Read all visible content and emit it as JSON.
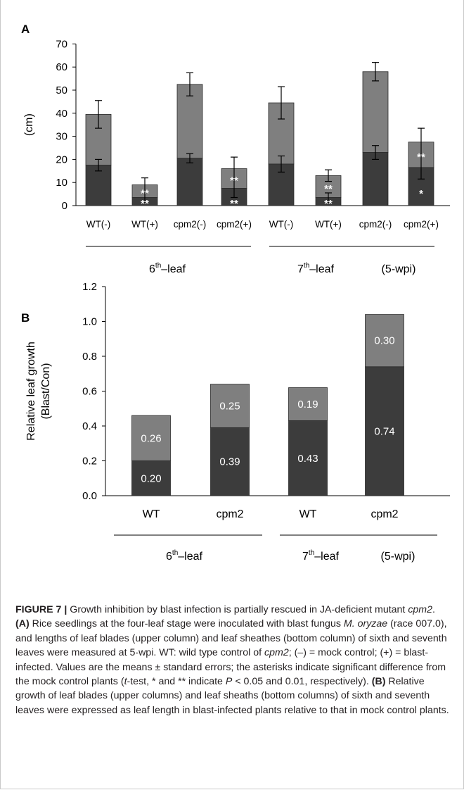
{
  "colors": {
    "lower": "#3c3c3c",
    "upper": "#7f7f7f",
    "axis": "#000000",
    "caption_text": "#231f20"
  },
  "panel_a": {
    "label": "A",
    "group_labels": [
      {
        "base": "6",
        "sup": "th",
        "suffix": "–leaf"
      },
      {
        "base": "7",
        "sup": "th",
        "suffix": "–leaf"
      }
    ],
    "note": "(5-wpi)"
  },
  "panel_b": {
    "label": "B",
    "group_labels": [
      {
        "base": "6",
        "sup": "th",
        "suffix": "–leaf"
      },
      {
        "base": "7",
        "sup": "th",
        "suffix": "–leaf"
      }
    ],
    "note": "(5-wpi)"
  },
  "chart_data": [
    {
      "type": "bar",
      "stacked": true,
      "panel": "A",
      "ylabel": "(cm)",
      "ylim": [
        0,
        70
      ],
      "yticks": [
        0,
        10,
        20,
        30,
        40,
        50,
        60,
        70
      ],
      "categories": [
        "WT(-)",
        "WT(+)",
        "cpm2(-)",
        "cpm2(+)",
        "WT(-)",
        "WT(+)",
        "cpm2(-)",
        "cpm2(+)"
      ],
      "groups": [
        "6th–leaf",
        "7th–leaf"
      ],
      "series": [
        {
          "name": "leaf sheath",
          "values": [
            17.5,
            3.5,
            20.5,
            7.5,
            18,
            3.5,
            23,
            16.5
          ],
          "errors": [
            2.5,
            2,
            2,
            4,
            3.5,
            2,
            3,
            5
          ]
        },
        {
          "name": "leaf blade",
          "values": [
            22,
            5.5,
            32,
            8.5,
            26.5,
            9.5,
            35,
            11
          ],
          "errors": [
            6,
            3,
            5,
            5,
            7,
            2.5,
            4,
            6
          ]
        }
      ],
      "annotations": [
        {
          "category_index": 1,
          "part": "upper",
          "text": "**"
        },
        {
          "category_index": 1,
          "part": "lower",
          "text": "**"
        },
        {
          "category_index": 3,
          "part": "upper",
          "text": "**"
        },
        {
          "category_index": 3,
          "part": "lower",
          "text": "**"
        },
        {
          "category_index": 5,
          "part": "upper",
          "text": "**"
        },
        {
          "category_index": 5,
          "part": "lower",
          "text": "**"
        },
        {
          "category_index": 7,
          "part": "upper",
          "text": "**"
        },
        {
          "category_index": 7,
          "part": "lower",
          "text": "*"
        }
      ]
    },
    {
      "type": "bar",
      "stacked": true,
      "panel": "B",
      "ylabel": "Relative leaf growth\n(Blast/Con)",
      "ylabel_lines": [
        "Relative leaf growth",
        "(Blast/Con)"
      ],
      "ylim": [
        0,
        1.2
      ],
      "yticks": [
        "0.0",
        "0.2",
        "0.4",
        "0.6",
        "0.8",
        "1.0",
        "1.2"
      ],
      "categories": [
        "WT",
        "cpm2",
        "WT",
        "cpm2"
      ],
      "groups": [
        "6th–leaf",
        "7th–leaf"
      ],
      "series": [
        {
          "name": "leaf sheath",
          "values": [
            0.2,
            0.39,
            0.43,
            0.74
          ],
          "labels": [
            "0.20",
            "0.39",
            "0.43",
            "0.74"
          ]
        },
        {
          "name": "leaf blade",
          "values": [
            0.26,
            0.25,
            0.19,
            0.3
          ],
          "labels": [
            "0.26",
            "0.25",
            "0.19",
            "0.30"
          ]
        }
      ]
    }
  ],
  "caption": {
    "figure_label": "FIGURE 7 |",
    "intro": " Growth inhibition by blast infection is partially rescued in JA-deficient mutant ",
    "mutant": "cpm2",
    "a_label": "(A)",
    "a_text1": " Rice seedlings at the four-leaf stage were inoculated with blast fungus ",
    "species": "M. oryzae",
    "a_text2": " (race 007.0), and lengths of leaf blades (upper column) and leaf sheathes (bottom column) of sixth and seventh leaves were measured at 5-wpi. WT: wild type control of ",
    "mutant2": "cpm2",
    "a_text3": "; (–) = mock control; (+) = blast-infected. Values are the means ± standard errors; the asterisks indicate significant difference from the mock control plants (",
    "t_italic": "t",
    "a_text4": "-test, * and ** indicate ",
    "p1": "P",
    "a_text5": " < 0.05 and 0.01, respectively). ",
    "b_label": "(B)",
    "b_text": " Relative growth of leaf blades (upper columns) and leaf sheaths (bottom columns) of sixth and seventh leaves were expressed as leaf length in blast-infected plants relative to that in mock control plants."
  }
}
